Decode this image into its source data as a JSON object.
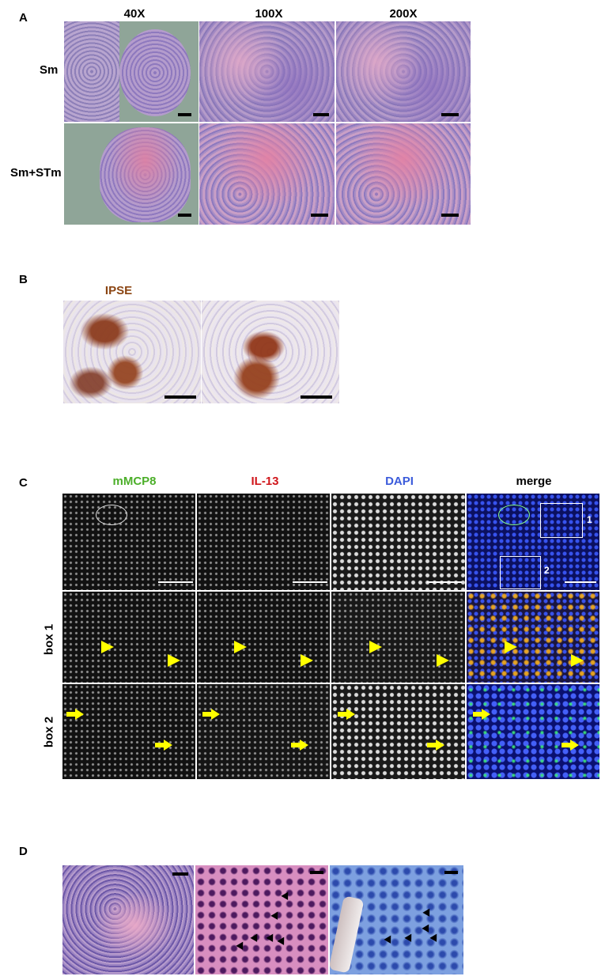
{
  "panels": {
    "A": {
      "label": "A",
      "col_headers": [
        "40X",
        "100X",
        "200X"
      ],
      "row_labels": [
        "Sm",
        "Sm+STm"
      ]
    },
    "B": {
      "label": "B",
      "stain_label": "IPSE",
      "stain_color": "#8b4513"
    },
    "C": {
      "label": "C",
      "channels": [
        {
          "name": "mMCP8",
          "color": "#4caf2a"
        },
        {
          "name": "IL-13",
          "color": "#d0161b"
        },
        {
          "name": "DAPI",
          "color": "#3b5bdb"
        },
        {
          "name": "merge",
          "color": "#000000"
        }
      ],
      "row_labels": [
        "box 1",
        "box 2"
      ],
      "box_numbers": [
        "1",
        "2"
      ]
    },
    "D": {
      "label": "D"
    }
  },
  "colors": {
    "arrow": "#ffff00",
    "background": "#ffffff"
  }
}
